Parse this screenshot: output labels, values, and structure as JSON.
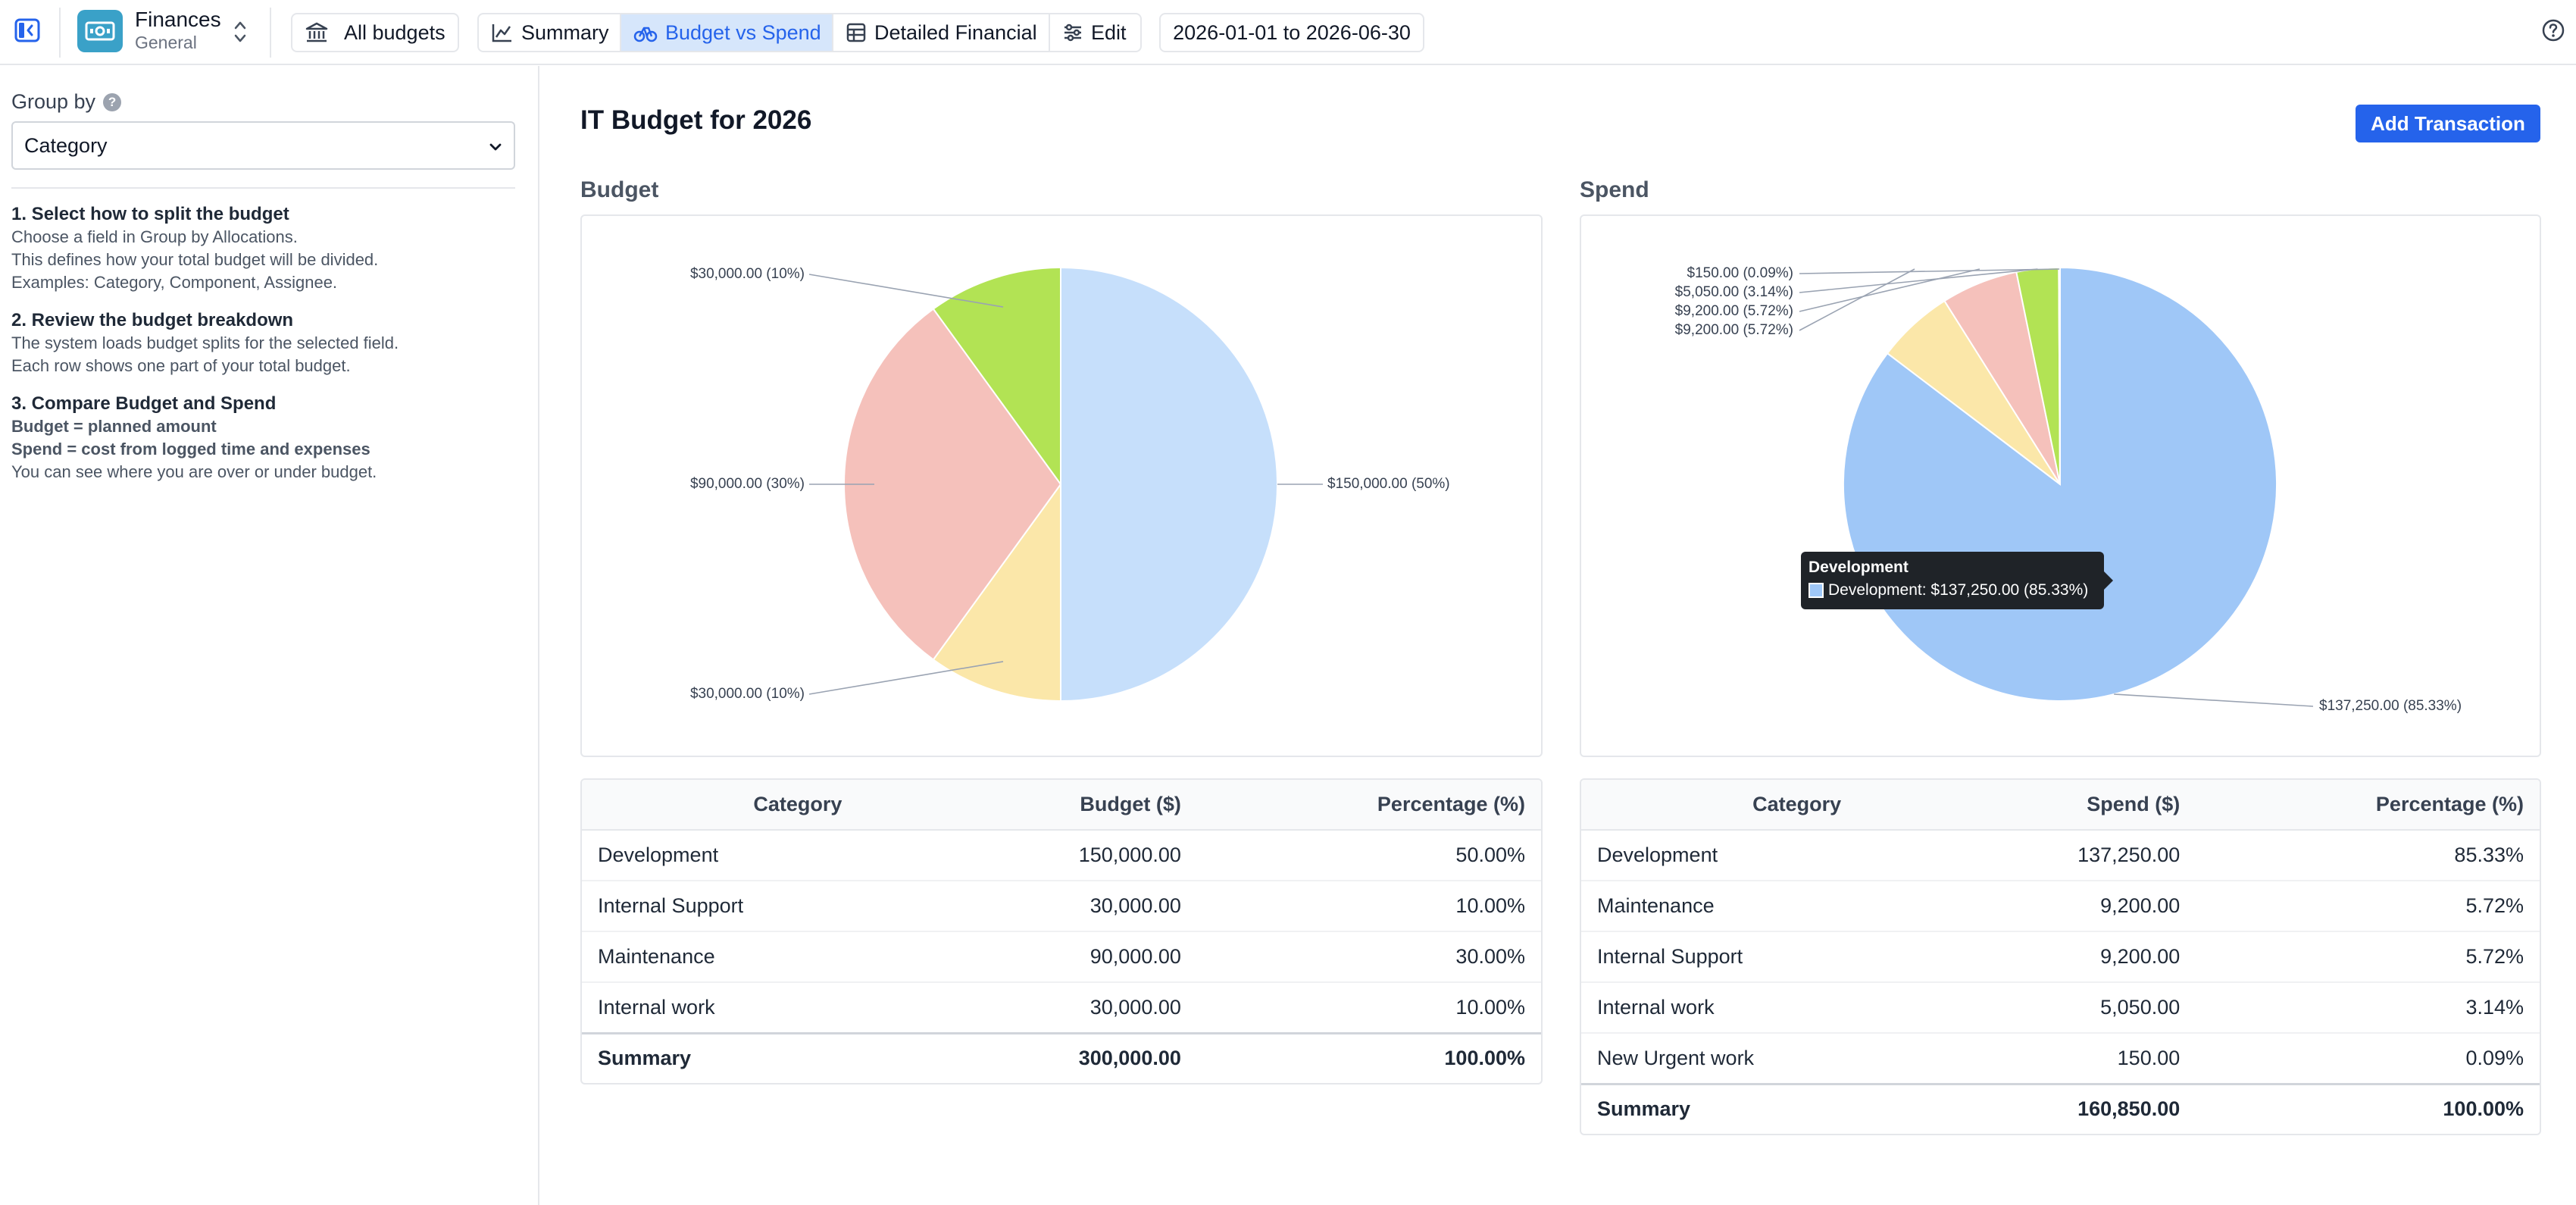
{
  "app": {
    "name": "Finances",
    "subtitle": "General"
  },
  "toolbar": {
    "all_budgets_label": "All budgets",
    "tabs": [
      {
        "label": "Summary",
        "icon": "chart-line-icon"
      },
      {
        "label": "Budget vs Spend",
        "icon": "scale-icon",
        "active": true
      },
      {
        "label": "Detailed Financial",
        "icon": "table-icon"
      },
      {
        "label": "Edit",
        "icon": "sliders-icon"
      }
    ],
    "date_range": "2026-01-01 to 2026-06-30"
  },
  "sidebar": {
    "group_by_label": "Group by",
    "group_by_value": "Category",
    "steps": [
      {
        "title": "1. Select how to split the budget",
        "lines": [
          "Choose a field in Group by Allocations.",
          "This defines how your total budget will be divided.",
          "Examples: Category, Component, Assignee."
        ]
      },
      {
        "title": "2. Review the budget breakdown",
        "lines": [
          "The system loads budget splits for the selected field.",
          "Each row shows one part of your total budget."
        ]
      },
      {
        "title": "3. Compare Budget and Spend",
        "bold_lines": [
          "Budget = planned amount",
          "Spend = cost from logged time and expenses"
        ],
        "lines": [
          "You can see where you are over or under budget."
        ]
      }
    ]
  },
  "main": {
    "title": "IT Budget for 2026",
    "add_button": "Add Transaction",
    "budget_title": "Budget",
    "spend_title": "Spend"
  },
  "colors": {
    "development_budget": "#c6dffb",
    "development_spend": "#9fc7f7",
    "internal_support": "#fbe7a9",
    "maintenance": "#f5c1bb",
    "internal_work": "#b2e354",
    "new_urgent_work": "#d6d6d6",
    "accent": "#2563eb"
  },
  "chart_data": [
    {
      "type": "pie",
      "title": "Budget",
      "slices": [
        {
          "name": "Development",
          "value": 150000,
          "label": "$150,000.00 (50%)",
          "color": "#c6dffb"
        },
        {
          "name": "Internal Support",
          "value": 30000,
          "label": "$30,000.00 (10%)",
          "color": "#fbe7a9"
        },
        {
          "name": "Maintenance",
          "value": 90000,
          "label": "$90,000.00 (30%)",
          "color": "#f5c1bb"
        },
        {
          "name": "Internal work",
          "value": 30000,
          "label": "$30,000.00 (10%)",
          "color": "#b2e354"
        }
      ]
    },
    {
      "type": "pie",
      "title": "Spend",
      "slices": [
        {
          "name": "Development",
          "value": 137250,
          "label": "$137,250.00 (85.33%)",
          "color": "#9fc7f7"
        },
        {
          "name": "Internal Support",
          "value": 9200,
          "label": "$9,200.00 (5.72%)",
          "color": "#fbe7a9"
        },
        {
          "name": "Maintenance",
          "value": 9200,
          "label": "$9,200.00 (5.72%)",
          "color": "#f5c1bb"
        },
        {
          "name": "Internal work",
          "value": 5050,
          "label": "$5,050.00 (3.14%)",
          "color": "#b2e354"
        },
        {
          "name": "New Urgent work",
          "value": 150,
          "label": "$150.00 (0.09%)",
          "color": "#d6d6d6"
        }
      ],
      "tooltip": {
        "title": "Development",
        "text": "Development: $137,250.00 (85.33%)"
      }
    },
    {
      "type": "table",
      "title": "Budget",
      "columns": [
        "Category",
        "Budget ($)",
        "Percentage (%)"
      ],
      "rows": [
        [
          "Development",
          "150,000.00",
          "50.00%"
        ],
        [
          "Internal Support",
          "30,000.00",
          "10.00%"
        ],
        [
          "Maintenance",
          "90,000.00",
          "30.00%"
        ],
        [
          "Internal work",
          "30,000.00",
          "10.00%"
        ]
      ],
      "summary": [
        "Summary",
        "300,000.00",
        "100.00%"
      ]
    },
    {
      "type": "table",
      "title": "Spend",
      "columns": [
        "Category",
        "Spend ($)",
        "Percentage (%)"
      ],
      "rows": [
        [
          "Development",
          "137,250.00",
          "85.33%"
        ],
        [
          "Maintenance",
          "9,200.00",
          "5.72%"
        ],
        [
          "Internal Support",
          "9,200.00",
          "5.72%"
        ],
        [
          "Internal work",
          "5,050.00",
          "3.14%"
        ],
        [
          "New Urgent work",
          "150.00",
          "0.09%"
        ]
      ],
      "summary": [
        "Summary",
        "160,850.00",
        "100.00%"
      ]
    }
  ]
}
